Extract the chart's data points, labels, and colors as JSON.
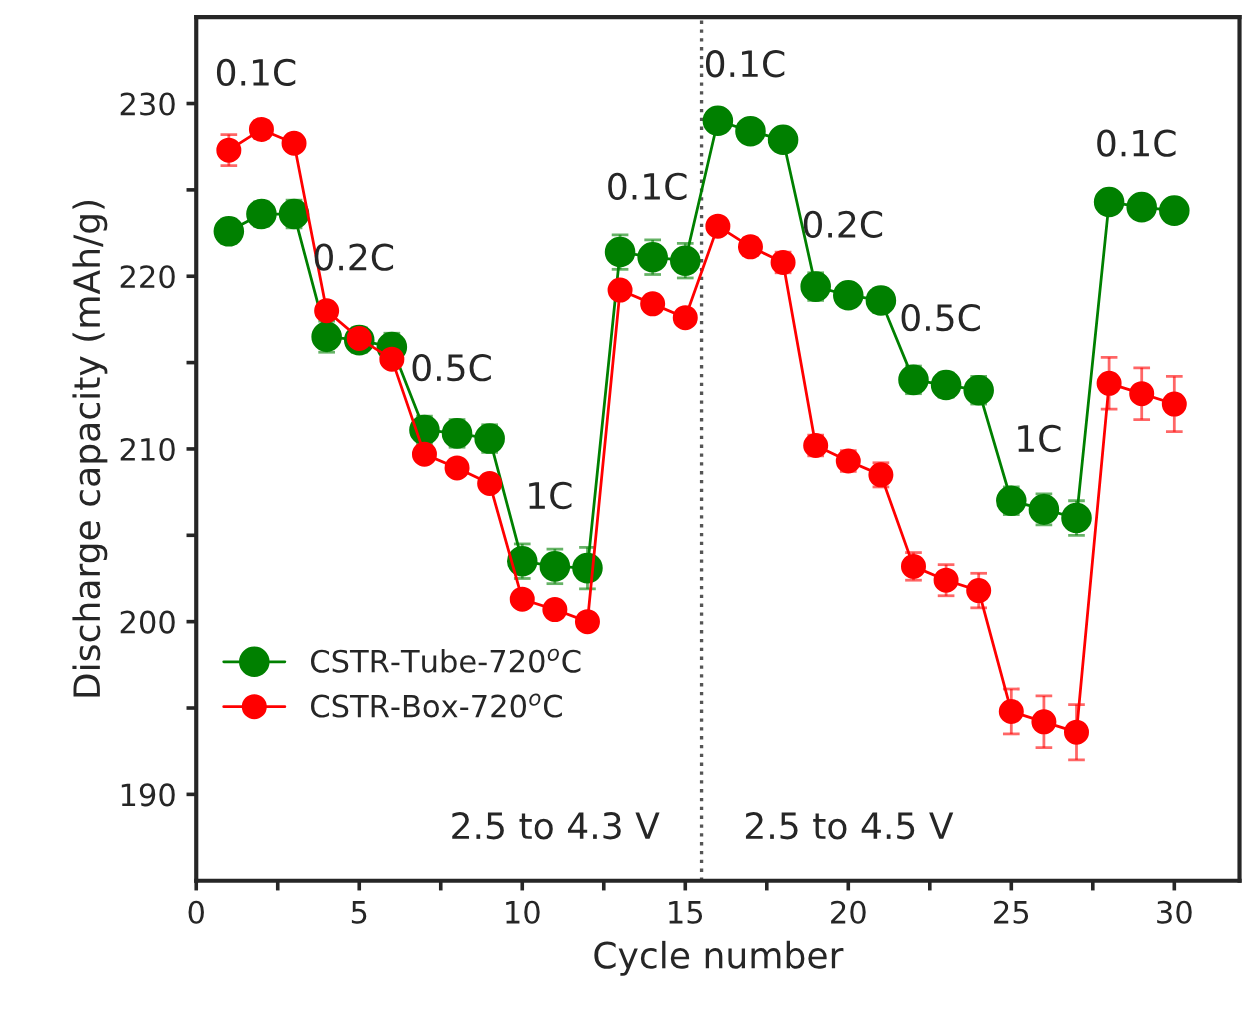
{
  "chart_data": {
    "type": "line",
    "xlabel": "Cycle number",
    "ylabel": "Discharge capacity (mAh/g)",
    "xlim": [
      0,
      32
    ],
    "ylim": [
      185,
      235
    ],
    "xticks": [
      0,
      {
        "value": 2.5,
        "label": null
      },
      5,
      {
        "value": 7.5,
        "label": null
      },
      10,
      {
        "value": 12.5,
        "label": null
      },
      15,
      {
        "value": 17.5,
        "label": null
      },
      20,
      {
        "value": 22.5,
        "label": null
      },
      25,
      {
        "value": 27.5,
        "label": null
      },
      30
    ],
    "yticks": [
      190,
      {
        "value": 195,
        "label": null
      },
      200,
      {
        "value": 205,
        "label": null
      },
      210,
      {
        "value": 215,
        "label": null
      },
      220,
      {
        "value": 225,
        "label": null
      },
      230
    ],
    "x": [
      1,
      2,
      3,
      4,
      5,
      6,
      7,
      8,
      9,
      10,
      11,
      12,
      13,
      14,
      15,
      16,
      17,
      18,
      19,
      20,
      21,
      22,
      23,
      24,
      25,
      26,
      27,
      28,
      29,
      30
    ],
    "series": [
      {
        "name": "CSTR-Tube-720$^{o}$C",
        "color": "#008000",
        "values": [
          222.6,
          223.6,
          223.6,
          216.5,
          216.3,
          215.9,
          211.1,
          210.9,
          210.6,
          203.5,
          203.2,
          203.1,
          221.4,
          221.1,
          220.9,
          229.0,
          228.4,
          227.9,
          219.4,
          218.9,
          218.6,
          214.0,
          213.7,
          213.4,
          207.0,
          206.5,
          206.0,
          224.3,
          224.0,
          223.8
        ],
        "errors": [
          0.7,
          0.7,
          0.8,
          0.9,
          0.7,
          0.8,
          0.8,
          0.8,
          0.8,
          1.0,
          1.0,
          1.2,
          1.0,
          1.0,
          1.0,
          0.5,
          0.5,
          0.5,
          0.8,
          0.6,
          0.7,
          0.8,
          0.7,
          0.8,
          0.8,
          0.9,
          1.0,
          0.6,
          0.5,
          0.6
        ]
      },
      {
        "name": "CSTR-Box-720$^{o}$C",
        "color": "#ff0000",
        "values": [
          227.3,
          228.5,
          227.7,
          218.0,
          216.4,
          215.2,
          209.7,
          208.9,
          208.0,
          201.3,
          200.7,
          200.0,
          219.2,
          218.4,
          217.6,
          222.9,
          221.7,
          220.8,
          210.2,
          209.3,
          208.5,
          203.2,
          202.4,
          201.8,
          194.8,
          194.2,
          193.6,
          213.8,
          213.2,
          212.6
        ],
        "errors": [
          0.9,
          0.5,
          0.3,
          0.3,
          0.6,
          0.3,
          0.3,
          0.3,
          0.3,
          0.3,
          0.3,
          0.3,
          0.3,
          0.3,
          0.3,
          0.4,
          0.5,
          0.6,
          0.6,
          0.6,
          0.7,
          0.8,
          0.9,
          1.0,
          1.3,
          1.5,
          1.6,
          1.5,
          1.5,
          1.6
        ]
      }
    ],
    "marker": "circle",
    "line_style": "solid",
    "grid": false,
    "legend": "bottom left",
    "ref_lines": [
      {
        "axis": "x",
        "value": 15.5,
        "color": "#555555",
        "line_style": "dotted"
      }
    ],
    "annotations": [
      "0.1C",
      "0.2C",
      "0.5C",
      "1C",
      "0.1C",
      "0.1C",
      "0.2C",
      "0.5C",
      "1C",
      "0.1C",
      "2.5 to 4.3 V",
      "2.5 to 4.5 V"
    ]
  }
}
